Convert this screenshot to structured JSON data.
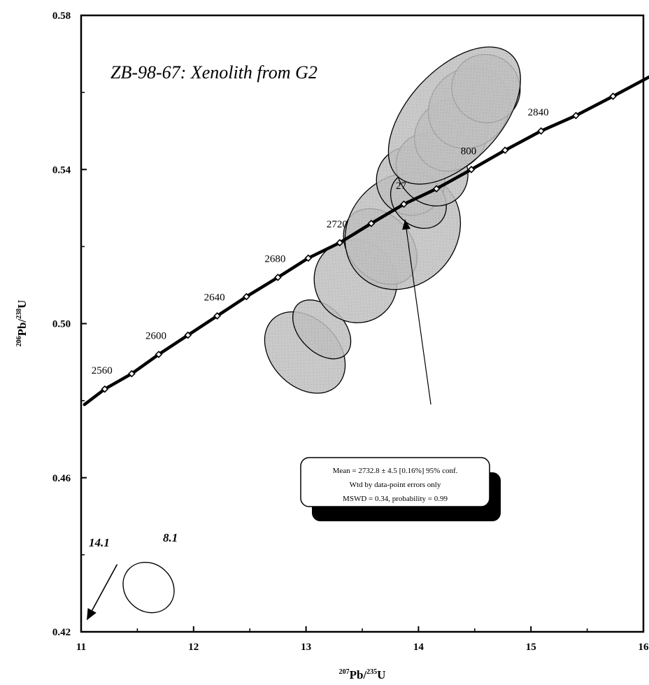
{
  "chart_data": {
    "type": "scatter",
    "title": "ZB-98-67: Xenolith from G2",
    "xlabel": {
      "mass": "207",
      "elem1": "Pb/",
      "mass2": "235",
      "elem2": "U"
    },
    "ylabel": {
      "mass": "206",
      "elem1": "Pb/",
      "mass2": "238",
      "elem2": "U"
    },
    "xlim": [
      11,
      16
    ],
    "ylim": [
      0.42,
      0.58
    ],
    "x_ticks": [
      "11",
      "12",
      "13",
      "14",
      "15",
      "16"
    ],
    "y_ticks": [
      "0.42",
      "0.46",
      "0.50",
      "0.54",
      "0.58"
    ],
    "concordia": {
      "t0": 2540,
      "dt": 20,
      "points": [
        [
          11.03,
          0.479
        ],
        [
          11.21,
          0.483
        ],
        [
          11.45,
          0.487
        ],
        [
          11.69,
          0.492
        ],
        [
          11.95,
          0.497
        ],
        [
          12.21,
          0.502
        ],
        [
          12.47,
          0.507
        ],
        [
          12.75,
          0.512
        ],
        [
          13.02,
          0.517
        ],
        [
          13.3,
          0.521
        ],
        [
          13.58,
          0.526
        ],
        [
          13.87,
          0.531
        ],
        [
          14.16,
          0.535
        ],
        [
          14.47,
          0.54
        ],
        [
          14.77,
          0.545
        ],
        [
          15.09,
          0.55
        ],
        [
          15.4,
          0.554
        ],
        [
          15.73,
          0.559
        ],
        [
          16.05,
          0.564
        ]
      ],
      "age_labels": [
        {
          "text": "2560",
          "x": 11.21,
          "y": 0.483
        },
        {
          "text": "2600",
          "x": 11.69,
          "y": 0.492
        },
        {
          "text": "2640",
          "x": 12.21,
          "y": 0.502
        },
        {
          "text": "2680",
          "x": 12.75,
          "y": 0.512
        },
        {
          "text": "2720",
          "x": 13.3,
          "y": 0.521
        },
        {
          "text": "27",
          "x": 13.87,
          "y": 0.531
        },
        {
          "text": "800",
          "x": 14.47,
          "y": 0.54
        },
        {
          "text": "2840",
          "x": 15.09,
          "y": 0.55
        }
      ]
    },
    "error_ellipses": [
      {
        "cx": 12.99,
        "cy": 0.4925,
        "rx": 0.3,
        "ry": 0.012,
        "rot": -44
      },
      {
        "cx": 13.14,
        "cy": 0.4985,
        "rx": 0.2,
        "ry": 0.009,
        "rot": -44
      },
      {
        "cx": 13.44,
        "cy": 0.511,
        "rx": 0.36,
        "ry": 0.011,
        "rot": -43
      },
      {
        "cx": 13.66,
        "cy": 0.52,
        "rx": 0.28,
        "ry": 0.011,
        "rot": -42
      },
      {
        "cx": 13.86,
        "cy": 0.524,
        "rx": 0.55,
        "ry": 0.014,
        "rot": -47
      },
      {
        "cx": 13.93,
        "cy": 0.537,
        "rx": 0.3,
        "ry": 0.009,
        "rot": -43
      },
      {
        "cx": 14.0,
        "cy": 0.532,
        "rx": 0.22,
        "ry": 0.008,
        "rot": -44
      },
      {
        "cx": 14.12,
        "cy": 0.54,
        "rx": 0.3,
        "ry": 0.01,
        "rot": -42
      },
      {
        "cx": 14.29,
        "cy": 0.549,
        "rx": 0.34,
        "ry": 0.009,
        "rot": -43
      },
      {
        "cx": 14.45,
        "cy": 0.556,
        "rx": 0.38,
        "ry": 0.01,
        "rot": -44
      },
      {
        "cx": 14.6,
        "cy": 0.561,
        "rx": 0.3,
        "ry": 0.009,
        "rot": -45
      },
      {
        "cx": 14.32,
        "cy": 0.554,
        "rx": 0.74,
        "ry": 0.012,
        "rot": -47
      }
    ],
    "reference_ellipse": {
      "cx": 11.6,
      "cy": 0.4315,
      "rx": 0.21,
      "ry": 0.007,
      "rot": -48
    },
    "reference_arrow": {
      "from": [
        11.32,
        0.4375
      ],
      "to": [
        11.05,
        0.423
      ]
    },
    "reference_labels": [
      "14.1",
      "8.1"
    ],
    "mean_arrow": {
      "from": [
        14.11,
        0.479
      ],
      "to": [
        13.88,
        0.527
      ]
    },
    "mean_box": {
      "line1": "Mean = 2732.8 ± 4.5  [0.16%]  95% conf.",
      "line2": "Wtd by data-point errors only",
      "line3": "MSWD = 0.34, probability = 0.99"
    }
  }
}
